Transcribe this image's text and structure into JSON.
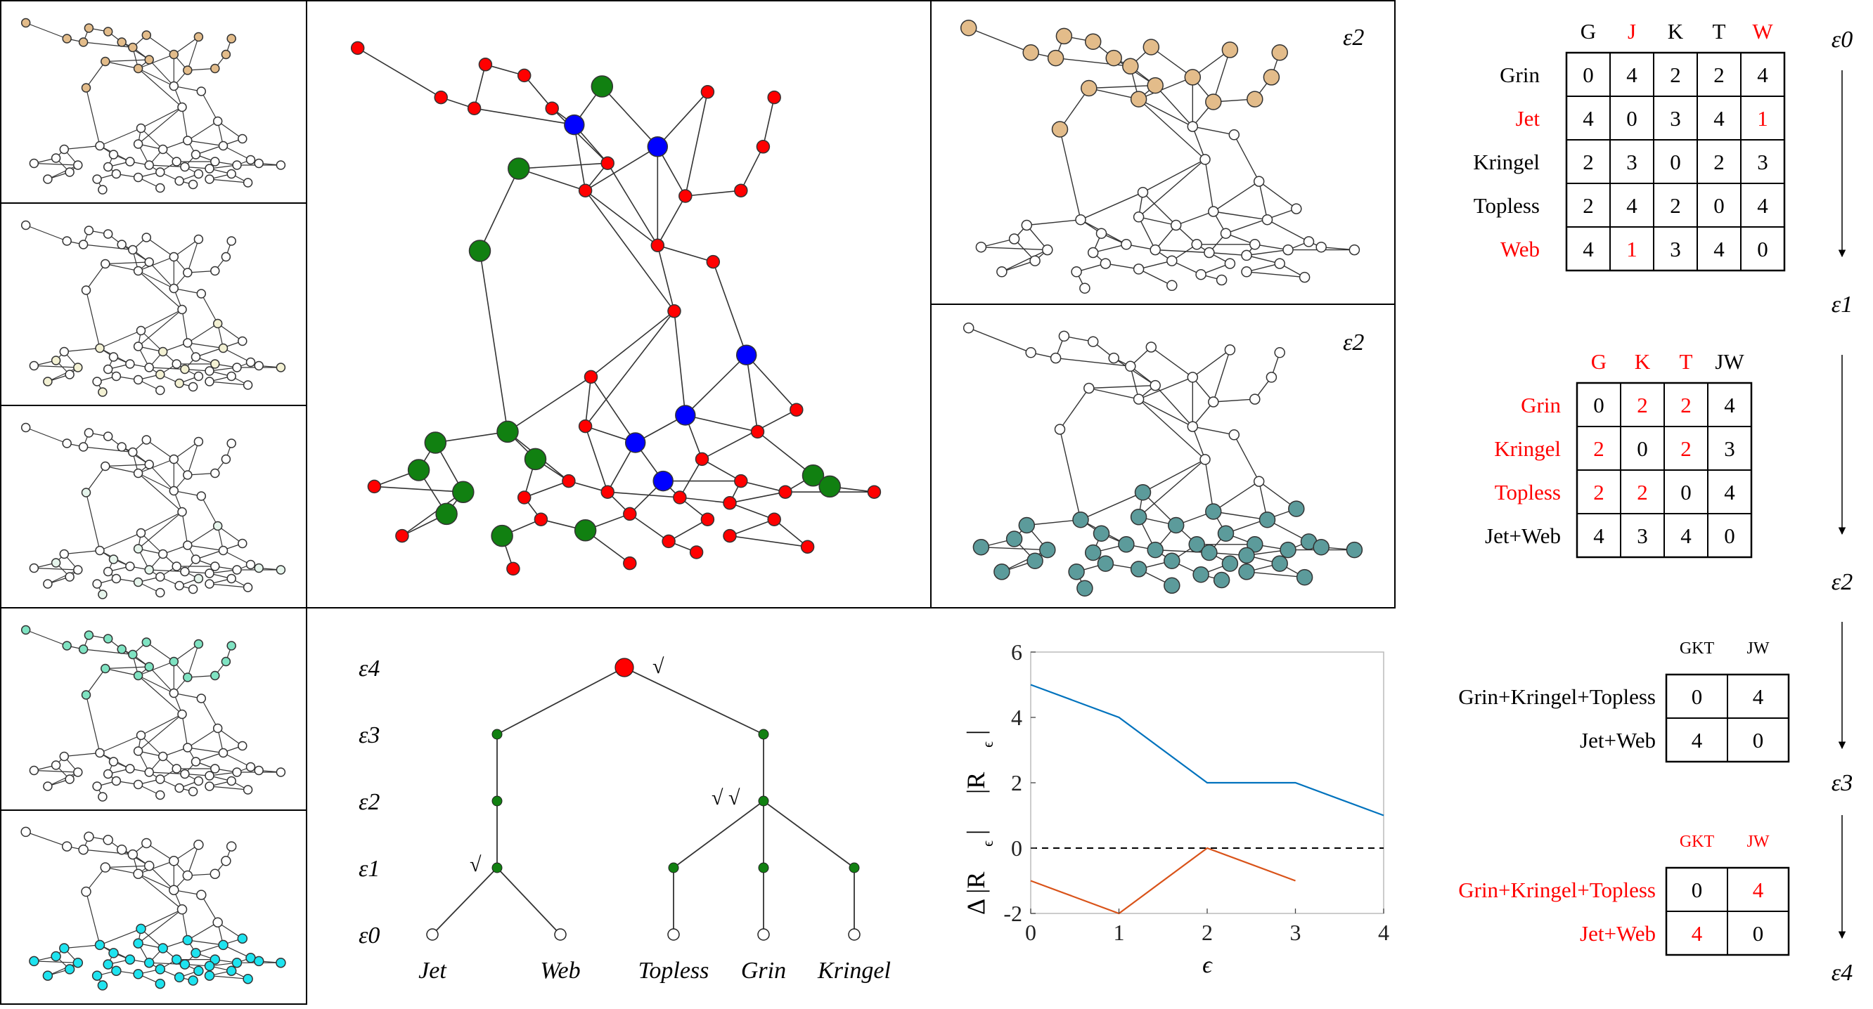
{
  "colors": {
    "red": "#ff0000",
    "green": "#118011",
    "blue": "#0000ff",
    "tan": "#e3bc8a",
    "teal": "#5c9b9b",
    "cyan": "#1ee3ef",
    "mint": "#7fe3c2",
    "cream": "#f3f1d3",
    "pale": "#e6f5ec",
    "blue_line": "#0072bd",
    "orange_line": "#d95319"
  },
  "panels": {
    "top_eps_label": "ε2",
    "bottom_eps_label": "ε2"
  },
  "tree": {
    "levels": [
      "ε4",
      "ε3",
      "ε2",
      "ε1",
      "ε0"
    ],
    "leaves": [
      "Jet",
      "Web",
      "Topless",
      "Grin",
      "Kringel"
    ],
    "check_root": "√",
    "check_e1": "√",
    "check_e2": "√ √"
  },
  "chart_data": {
    "type": "line",
    "x": [
      0,
      1,
      2,
      3,
      4
    ],
    "xlabel": "ϵ",
    "ylabel_top": "|R",
    "ylabel_top_sub": "ϵ",
    "ylabel_bottom": "Δ |R",
    "ylabel_bottom_sub": "ϵ",
    "xlim": [
      0,
      4
    ],
    "ylim": [
      -2,
      6
    ],
    "xticks": [
      "0",
      "1",
      "2",
      "3",
      "4"
    ],
    "yticks": [
      "-2",
      "0",
      "2",
      "4",
      "6"
    ],
    "series": [
      {
        "x": [
          0,
          1,
          2,
          3,
          4
        ],
        "values": [
          5,
          4,
          2,
          2,
          1
        ],
        "color": "blue"
      },
      {
        "x": [
          0,
          1,
          2,
          3
        ],
        "values": [
          -1,
          -2,
          0,
          -1
        ],
        "color": "orange"
      }
    ],
    "reference_line": 0,
    "grid": false
  },
  "matrices": {
    "m0": {
      "cols": [
        "G",
        "J",
        "K",
        "T",
        "W"
      ],
      "col_red": [
        false,
        true,
        false,
        false,
        true
      ],
      "rows": [
        "Grin",
        "Jet",
        "Kringel",
        "Topless",
        "Web"
      ],
      "row_red": [
        false,
        true,
        false,
        false,
        true
      ],
      "cells": [
        [
          "0",
          "4",
          "2",
          "2",
          "4"
        ],
        [
          "4",
          "0",
          "3",
          "4",
          "1"
        ],
        [
          "2",
          "3",
          "0",
          "2",
          "3"
        ],
        [
          "2",
          "4",
          "2",
          "0",
          "4"
        ],
        [
          "4",
          "1",
          "3",
          "4",
          "0"
        ]
      ],
      "cell_red": [
        [
          1,
          4
        ],
        [
          4,
          1
        ]
      ]
    },
    "m1": {
      "cols": [
        "G",
        "K",
        "T",
        "JW"
      ],
      "col_red": [
        true,
        true,
        true,
        false
      ],
      "rows": [
        "Grin",
        "Kringel",
        "Topless",
        "Jet+Web"
      ],
      "row_red": [
        true,
        true,
        true,
        false
      ],
      "cells": [
        [
          "0",
          "2",
          "2",
          "4"
        ],
        [
          "2",
          "0",
          "2",
          "3"
        ],
        [
          "2",
          "2",
          "0",
          "4"
        ],
        [
          "4",
          "3",
          "4",
          "0"
        ]
      ],
      "cell_red": [
        [
          0,
          1
        ],
        [
          0,
          2
        ],
        [
          1,
          0
        ],
        [
          1,
          2
        ],
        [
          2,
          0
        ],
        [
          2,
          1
        ]
      ]
    },
    "m2": {
      "cols": [
        "GKT",
        "JW"
      ],
      "col_red": [
        false,
        false
      ],
      "rows": [
        "Grin+Kringel+Topless",
        "Jet+Web"
      ],
      "row_red": [
        false,
        false
      ],
      "cells": [
        [
          "0",
          "4"
        ],
        [
          "4",
          "0"
        ]
      ],
      "cell_red": []
    },
    "m3": {
      "cols": [
        "GKT",
        "JW"
      ],
      "col_red": [
        true,
        true
      ],
      "rows": [
        "Grin+Kringel+Topless",
        "Jet+Web"
      ],
      "row_red": [
        true,
        true
      ],
      "cells": [
        [
          "0",
          "4"
        ],
        [
          "4",
          "0"
        ]
      ],
      "cell_red": [
        [
          0,
          1
        ],
        [
          1,
          0
        ]
      ]
    }
  },
  "epsilon_axis": [
    "ε0",
    "ε1",
    "ε2",
    "ε3",
    "ε4"
  ]
}
